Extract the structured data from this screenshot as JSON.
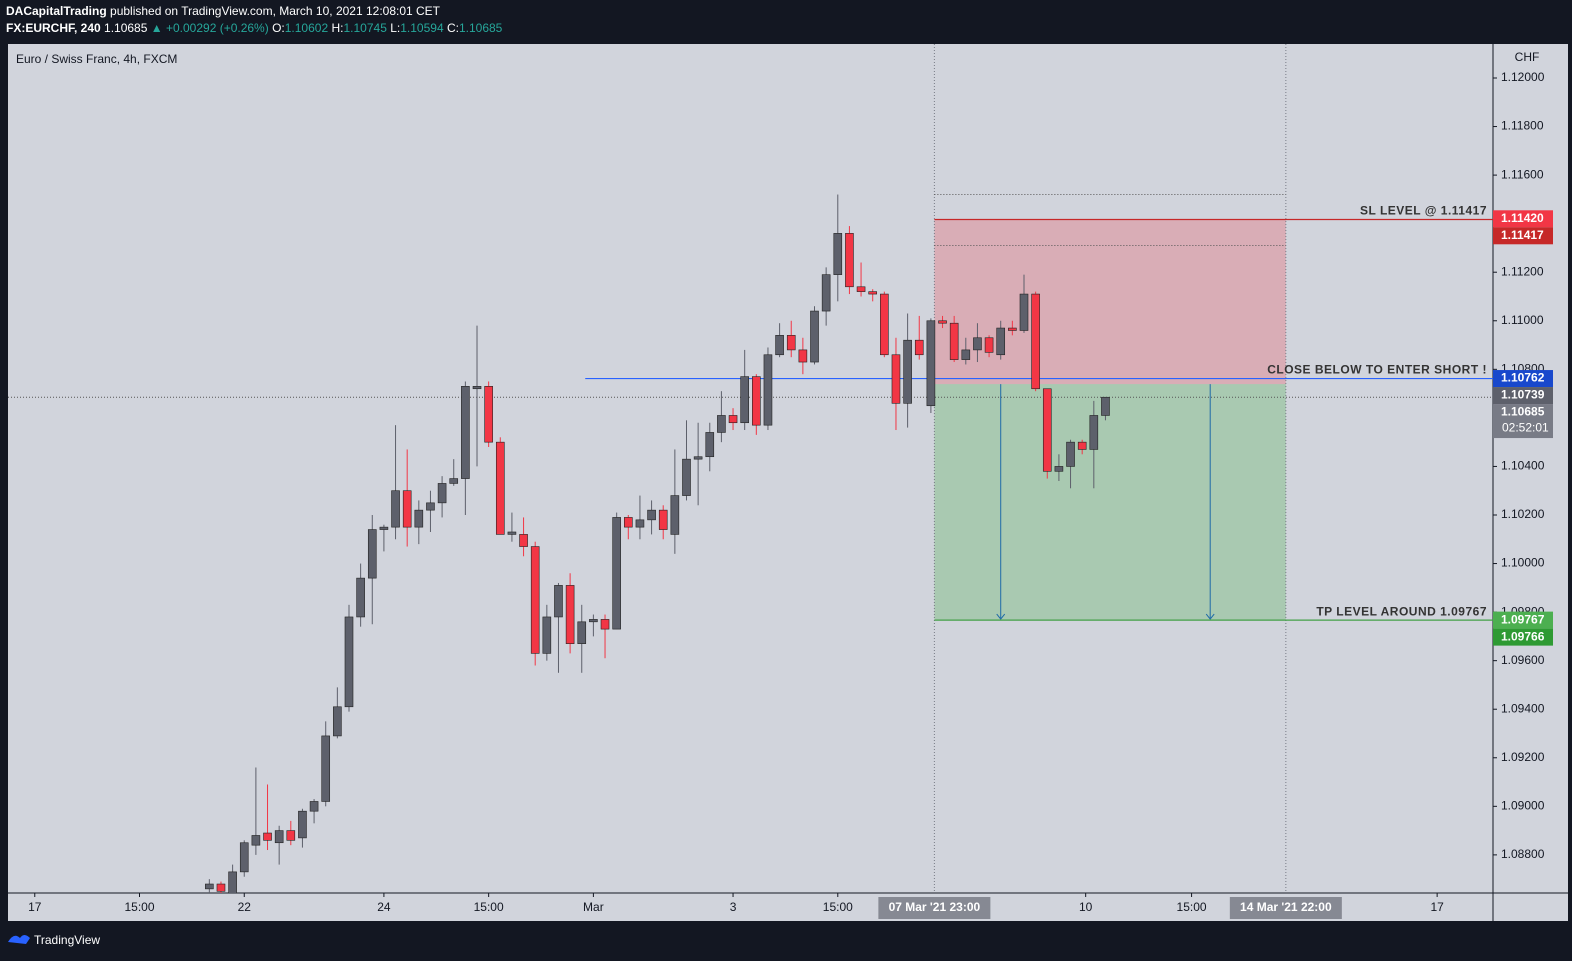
{
  "header": {
    "author": "DACapitalTrading",
    "published": "published on TradingView.com, March 10, 2021 12:08:01 CET",
    "symbol": "FX:EURCHF, 240",
    "last": "1.10685",
    "change": "▲ +0.00292 (+0.26%)",
    "ohlc": [
      {
        "label": "O:",
        "value": "1.10602"
      },
      {
        "label": "H:",
        "value": "1.10745"
      },
      {
        "label": "L:",
        "value": "1.10594"
      },
      {
        "label": "C:",
        "value": "1.10685"
      }
    ]
  },
  "footer": {
    "brand": "TradingView"
  },
  "chart_data": {
    "type": "candlestick",
    "title": "Euro / Swiss Franc, 4h, FXCM",
    "y_unit": "CHF",
    "up_color": "#5d606b",
    "down_color": "#f23645",
    "x": [
      15,
      16,
      17,
      18,
      19,
      20,
      21,
      22,
      23,
      24,
      25,
      26,
      27,
      28,
      29,
      30,
      31,
      32,
      33,
      34,
      35,
      36,
      37,
      38,
      39,
      40,
      41,
      42,
      43,
      44,
      45,
      46,
      47,
      48,
      49,
      50,
      51,
      52,
      53,
      54,
      55,
      56,
      57,
      58,
      59,
      60,
      61,
      62,
      63,
      64,
      65,
      66,
      67,
      68,
      69,
      70,
      71,
      72,
      73,
      74,
      75,
      76,
      77,
      78,
      79,
      80,
      81,
      82,
      83,
      84,
      85,
      86,
      87,
      88,
      89,
      90,
      91,
      92
    ],
    "open": [
      1.0866,
      1.0868,
      1.0864,
      1.0873,
      1.0884,
      1.0889,
      1.0885,
      1.089,
      1.0887,
      1.0898,
      1.0902,
      1.0929,
      1.0941,
      1.0978,
      1.0994,
      1.1014,
      1.1015,
      1.103,
      1.1015,
      1.1022,
      1.1025,
      1.1033,
      1.1035,
      1.1072,
      1.1073,
      1.105,
      1.1012,
      1.1012,
      1.1007,
      1.0963,
      1.0978,
      1.0991,
      1.0967,
      1.0976,
      1.0977,
      1.0973,
      1.1019,
      1.1015,
      1.1018,
      1.1022,
      1.1012,
      1.1028,
      1.1043,
      1.1044,
      1.1054,
      1.1061,
      1.1058,
      1.1077,
      1.1057,
      1.1086,
      1.1094,
      1.1088,
      1.1083,
      1.1104,
      1.1119,
      1.1136,
      1.1114,
      1.1112,
      1.1111,
      1.1086,
      1.1066,
      1.1092,
      1.1065,
      1.11,
      1.1099,
      1.1084,
      1.1088,
      1.1093,
      1.1086,
      1.1097,
      1.1096,
      1.1111,
      1.1072,
      1.1038,
      1.104,
      1.105,
      1.1047,
      1.1061
    ],
    "high": [
      1.087,
      1.0869,
      1.0876,
      1.0886,
      1.0916,
      1.0909,
      1.0892,
      1.0894,
      1.0899,
      1.0903,
      1.0935,
      1.0949,
      1.0983,
      1.1,
      1.102,
      1.1016,
      1.1057,
      1.1047,
      1.1026,
      1.103,
      1.1036,
      1.1043,
      1.1075,
      1.1098,
      1.1075,
      1.1052,
      1.1021,
      1.1019,
      1.1009,
      1.0983,
      1.0992,
      1.0996,
      1.0983,
      1.0979,
      1.0979,
      1.1021,
      1.102,
      1.1028,
      1.1026,
      1.1024,
      1.1047,
      1.1059,
      1.1058,
      1.1058,
      1.1071,
      1.1064,
      1.1088,
      1.1078,
      1.1089,
      1.1099,
      1.11,
      1.1093,
      1.1106,
      1.1122,
      1.1152,
      1.1139,
      1.1124,
      1.1113,
      1.1112,
      1.1093,
      1.1103,
      1.1102,
      1.1101,
      1.1102,
      1.1102,
      1.1093,
      1.1099,
      1.1094,
      1.11,
      1.11,
      1.1119,
      1.1112,
      1.1072,
      1.1045,
      1.1051,
      1.1051,
      1.1067,
      1.1067
    ],
    "low": [
      1.0864,
      1.0864,
      1.0864,
      1.0871,
      1.088,
      1.0882,
      1.0876,
      1.0884,
      1.0883,
      1.0893,
      1.09,
      1.0928,
      1.0939,
      1.0974,
      1.0975,
      1.1005,
      1.101,
      1.1007,
      1.1008,
      1.1013,
      1.1019,
      1.1032,
      1.102,
      1.104,
      1.1048,
      1.1012,
      1.1009,
      1.1003,
      1.0958,
      1.096,
      1.0955,
      1.0963,
      1.0955,
      1.097,
      1.0961,
      1.0973,
      1.101,
      1.101,
      1.1012,
      1.101,
      1.1004,
      1.1026,
      1.1024,
      1.1038,
      1.105,
      1.1055,
      1.1055,
      1.1053,
      1.1055,
      1.1085,
      1.1085,
      1.1078,
      1.1082,
      1.1098,
      1.1108,
      1.1111,
      1.111,
      1.1108,
      1.1085,
      1.1055,
      1.1056,
      1.1084,
      1.1062,
      1.1097,
      1.1083,
      1.1082,
      1.1083,
      1.1085,
      1.1084,
      1.1094,
      1.1095,
      1.1071,
      1.1035,
      1.1034,
      1.1031,
      1.1045,
      1.1031,
      1.1059
    ],
    "close": [
      1.0868,
      1.0865,
      1.0873,
      1.0885,
      1.0888,
      1.0886,
      1.089,
      1.0886,
      1.0898,
      1.0902,
      1.0929,
      1.0941,
      1.0978,
      1.0994,
      1.1014,
      1.1015,
      1.103,
      1.1015,
      1.1022,
      1.1025,
      1.1033,
      1.1035,
      1.1073,
      1.1073,
      1.105,
      1.1012,
      1.1013,
      1.1007,
      1.0963,
      1.0978,
      1.0991,
      1.0967,
      1.0976,
      1.0977,
      1.0973,
      1.1019,
      1.1015,
      1.1018,
      1.1022,
      1.1014,
      1.1028,
      1.1043,
      1.1044,
      1.1054,
      1.1061,
      1.1058,
      1.1077,
      1.1057,
      1.1086,
      1.1094,
      1.1088,
      1.1083,
      1.1104,
      1.1119,
      1.1136,
      1.1114,
      1.1112,
      1.1111,
      1.1086,
      1.1066,
      1.1092,
      1.1086,
      1.11,
      1.1099,
      1.1084,
      1.1088,
      1.1093,
      1.1087,
      1.1097,
      1.1096,
      1.1111,
      1.1072,
      1.1038,
      1.104,
      1.105,
      1.1047,
      1.1061,
      1.10685
    ],
    "xlim": [
      -2.3,
      125.3
    ],
    "ylim": [
      1.08643,
      1.1214
    ],
    "xticks": [
      {
        "value": 0,
        "label": "17"
      },
      {
        "value": 9,
        "label": "15:00"
      },
      {
        "value": 18,
        "label": "22"
      },
      {
        "value": 30,
        "label": "24"
      },
      {
        "value": 39,
        "label": "15:00"
      },
      {
        "value": 48,
        "label": "Mar"
      },
      {
        "value": 60,
        "label": "3"
      },
      {
        "value": 69,
        "label": "15:00"
      },
      {
        "value": 90.3,
        "label": "10"
      },
      {
        "value": 99.4,
        "label": "15:00"
      },
      {
        "value": 120.5,
        "label": "17"
      }
    ],
    "xmarkers": [
      {
        "value": 77.3,
        "label": "07 Mar '21 23:00"
      },
      {
        "value": 107.5,
        "label": "14 Mar '21 22:00"
      }
    ],
    "yticks": [
      {
        "value": 1.12,
        "label": "1.12000"
      },
      {
        "value": 1.118,
        "label": "1.11800"
      },
      {
        "value": 1.116,
        "label": "1.11600"
      },
      {
        "value": 1.114,
        "label": "1.11400"
      },
      {
        "value": 1.112,
        "label": "1.11200"
      },
      {
        "value": 1.11,
        "label": "1.11000"
      },
      {
        "value": 1.108,
        "label": "1.10800"
      },
      {
        "value": 1.104,
        "label": "1.10400"
      },
      {
        "value": 1.102,
        "label": "1.10200"
      },
      {
        "value": 1.1,
        "label": "1.10000"
      },
      {
        "value": 1.098,
        "label": "1.09800"
      },
      {
        "value": 1.096,
        "label": "1.09600"
      },
      {
        "value": 1.094,
        "label": "1.09400"
      },
      {
        "value": 1.092,
        "label": "1.09200"
      },
      {
        "value": 1.09,
        "label": "1.09000"
      },
      {
        "value": 1.088,
        "label": "1.08800"
      }
    ],
    "grid": false,
    "position": {
      "x_start": 77.3,
      "x_end": 107.5,
      "stop": 1.11417,
      "entry": 1.10739,
      "target": 1.09767,
      "stop_color": "#f23645",
      "target_color": "#4caf50",
      "arrows_x": [
        83,
        101
      ],
      "dotted_levels": [
        1.1152,
        1.1131
      ]
    },
    "lines": [
      {
        "text": "SL LEVEL @ 1.11417",
        "value": 1.11417,
        "x_start": 77.3,
        "color": "#c62828"
      },
      {
        "text": "CLOSE BELOW TO ENTER SHORT !",
        "value": 1.10762,
        "x_start": 47.3,
        "color": "#2962ff"
      },
      {
        "text": "TP LEVEL AROUND 1.09767",
        "value": 1.09767,
        "x_start": 77.3,
        "color": "#43a047"
      }
    ],
    "current_price": 1.10685,
    "badges": [
      {
        "value": 1.1142,
        "label": "1.11420",
        "color": "#f23645"
      },
      {
        "value": 1.11417,
        "label": "1.11417",
        "color": "#c62828"
      },
      {
        "value": 1.10762,
        "label": "1.10762",
        "color": "#1848cc"
      },
      {
        "value": 1.10739,
        "label": "1.10739",
        "color": "#5d606b"
      },
      {
        "value": 1.10685,
        "label": "1.10685",
        "color": "#787b86",
        "countdown": "02:52:01"
      },
      {
        "value": 1.09767,
        "label": "1.09767",
        "color": "#4caf50"
      },
      {
        "value": 1.09766,
        "label": "1.09766",
        "color": "#2e9a33"
      }
    ]
  }
}
